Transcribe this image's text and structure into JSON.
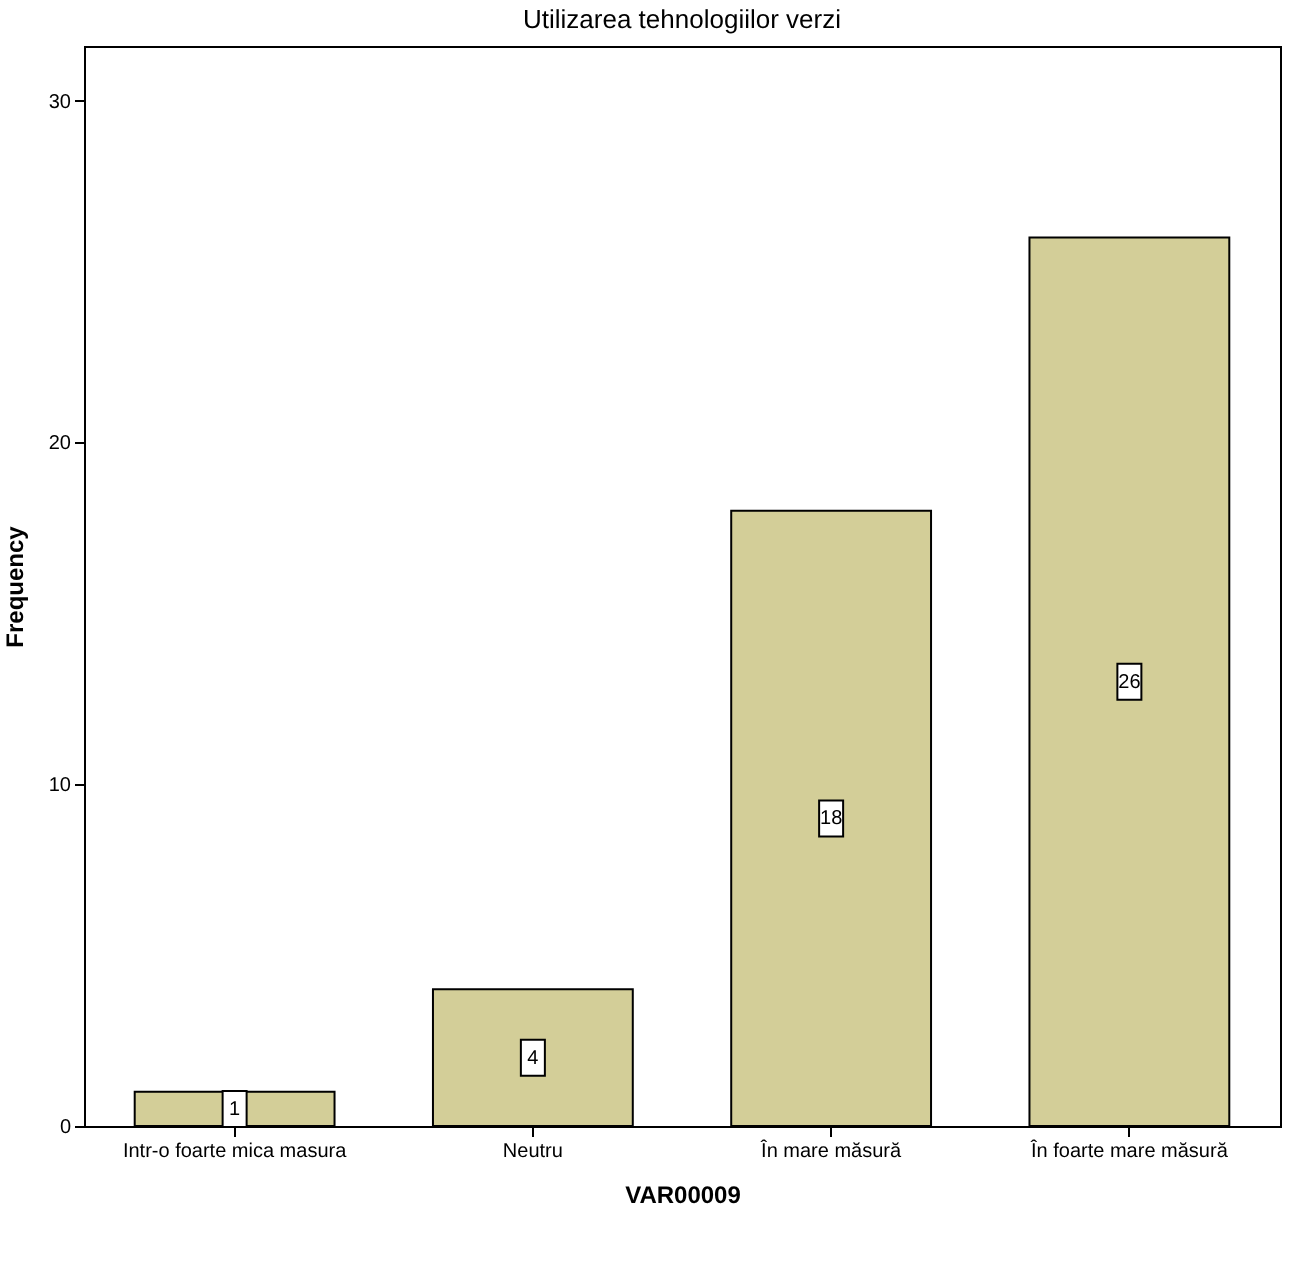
{
  "chart_data": {
    "type": "bar",
    "title": "Utilizarea tehnologiilor verzi",
    "xlabel": "VAR00009",
    "ylabel": "Frequency",
    "categories": [
      "Intr-o foarte mica masura",
      "Neutru",
      "În mare măsură",
      "În foarte mare măsură"
    ],
    "values": [
      1,
      4,
      18,
      26
    ],
    "color": "#d3ce98",
    "ylim": [
      0,
      31.6
    ],
    "yticks": [
      0,
      10,
      20,
      30
    ],
    "grid": false,
    "data_labels": true
  }
}
